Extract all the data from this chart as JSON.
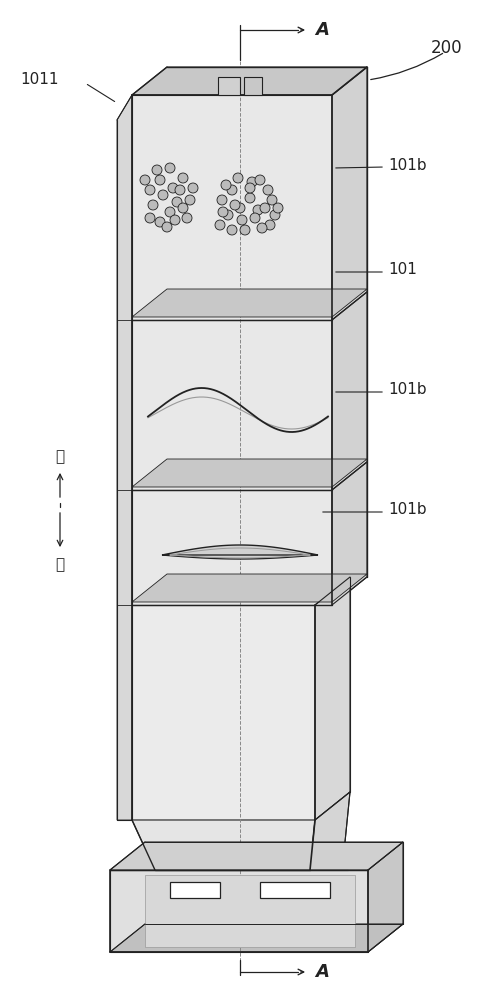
{
  "bg_color": "#ffffff",
  "line_color": "#666666",
  "dark_line": "#222222",
  "light_line": "#999999",
  "dashed_color": "#888888",
  "face_front": "#e8e8e8",
  "face_right": "#d2d2d2",
  "face_top": "#c8c8c8",
  "face_dark": "#bbbbbb",
  "label_200": "200",
  "label_1011": "1011",
  "label_101b_1": "101b",
  "label_101": "101",
  "label_101b_2": "101b",
  "label_101b_3": "101b",
  "label_A_top": "A",
  "label_A_bottom": "A",
  "label_up": "上",
  "label_down": "下",
  "figsize": [
    4.79,
    10.0
  ],
  "dpi": 100
}
